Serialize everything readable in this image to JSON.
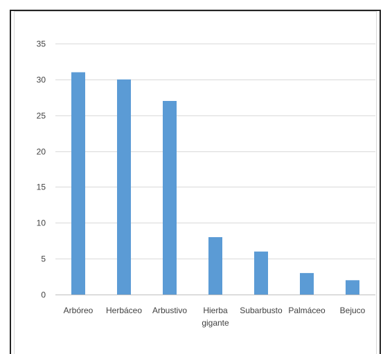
{
  "chart_data": {
    "type": "bar",
    "categories": [
      "Arbóreo",
      "Herbáceo",
      "Arbustivo",
      "Hierba gigante",
      "Subarbusto",
      "Palmáceo",
      "Bejuco"
    ],
    "category_lines": [
      [
        "Arbóreo"
      ],
      [
        "Herbáceo"
      ],
      [
        "Arbustivo"
      ],
      [
        "Hierba",
        "gigante"
      ],
      [
        "Subarbusto"
      ],
      [
        "Palmáceo"
      ],
      [
        "Bejuco"
      ]
    ],
    "values": [
      31,
      30,
      27,
      8,
      6,
      3,
      2
    ],
    "ylim": [
      0,
      35
    ],
    "yticks": [
      0,
      5,
      10,
      15,
      20,
      25,
      30,
      35
    ],
    "grid": true,
    "bar_color": "#5B9BD5",
    "grid_color": "#D9D9D9",
    "axis_color": "#BFBFBF"
  }
}
